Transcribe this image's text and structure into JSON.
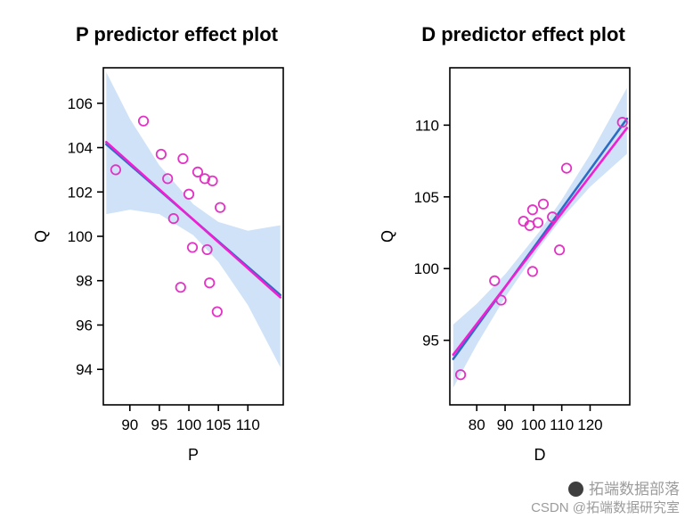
{
  "page": {
    "background": "#ffffff"
  },
  "colors": {
    "band": "#cfe2f7",
    "fit_line": "#2b6cc4",
    "alt_line": "#ef1fd4",
    "points": "#e233c4",
    "axis": "#000000",
    "title_text": "#000000",
    "watermark_text": "#9c9c9c",
    "watermark_logo": "#3f3f3f"
  },
  "chart_data": [
    {
      "type": "scatter",
      "title": "P predictor effect plot",
      "xlabel": "P",
      "ylabel": "Q",
      "xlim": [
        85.5,
        116
      ],
      "ylim": [
        92.4,
        107.6
      ],
      "xticks": [
        90,
        95,
        100,
        105,
        110
      ],
      "yticks": [
        94,
        96,
        98,
        100,
        102,
        104,
        106
      ],
      "grid": false,
      "legend": "none",
      "band": {
        "x": [
          86,
          90,
          95,
          100.75,
          105,
          110,
          115.5
        ],
        "upper": [
          107.4,
          105.3,
          103.2,
          101.45,
          100.65,
          100.25,
          100.5
        ],
        "lower": [
          101.0,
          101.2,
          101.0,
          100.05,
          98.85,
          96.9,
          94.1
        ]
      },
      "lines": [
        {
          "name": "fitted-line",
          "color": "fit_line",
          "x": [
            86,
            115.5
          ],
          "y": [
            104.15,
            97.35
          ]
        },
        {
          "name": "smooth-line",
          "color": "alt_line",
          "x": [
            86,
            115.5
          ],
          "y": [
            104.25,
            97.25
          ]
        }
      ],
      "points": {
        "x": [
          87.6,
          92.3,
          95.3,
          96.4,
          99.0,
          97.4,
          100.0,
          100.6,
          98.6,
          101.5,
          102.7,
          104.0,
          103.1,
          105.3,
          103.5,
          104.8
        ],
        "y": [
          103.0,
          105.2,
          103.7,
          102.6,
          103.5,
          100.8,
          101.9,
          99.5,
          97.7,
          102.9,
          102.6,
          102.5,
          99.4,
          101.3,
          97.9,
          96.6
        ]
      }
    },
    {
      "type": "scatter",
      "title": "D predictor effect plot",
      "xlabel": "D",
      "ylabel": "Q",
      "xlim": [
        70.5,
        134
      ],
      "ylim": [
        90.5,
        114
      ],
      "xticks": [
        80,
        90,
        100,
        110,
        120
      ],
      "yticks": [
        95,
        100,
        105,
        110
      ],
      "grid": false,
      "legend": "none",
      "band": {
        "x": [
          71.7,
          80,
          90,
          102,
          110,
          120,
          133
        ],
        "upper": [
          96.1,
          97.55,
          99.6,
          102.55,
          104.8,
          107.95,
          112.6
        ],
        "lower": [
          91.7,
          94.7,
          98.0,
          101.45,
          103.5,
          105.7,
          108.0
        ]
      },
      "lines": [
        {
          "name": "fitted-line",
          "color": "fit_line",
          "x": [
            71.7,
            133
          ],
          "y": [
            93.7,
            110.45
          ]
        },
        {
          "name": "smooth-line",
          "color": "alt_line",
          "x": [
            71.7,
            133
          ],
          "y": [
            94.0,
            109.8
          ]
        }
      ],
      "points": {
        "x": [
          74.3,
          86.3,
          88.6,
          96.5,
          98.7,
          99.7,
          101.6,
          103.5,
          99.7,
          106.7,
          109.2,
          111.7,
          131.4
        ],
        "y": [
          92.6,
          99.15,
          97.8,
          103.3,
          103.0,
          104.1,
          103.2,
          104.5,
          99.8,
          103.6,
          101.3,
          107.0,
          110.2
        ]
      }
    }
  ],
  "watermark": {
    "logo_icon": "tuoduan-logo",
    "line1": "拓端数据部落",
    "line2": "CSDN @拓端数据研究室"
  }
}
